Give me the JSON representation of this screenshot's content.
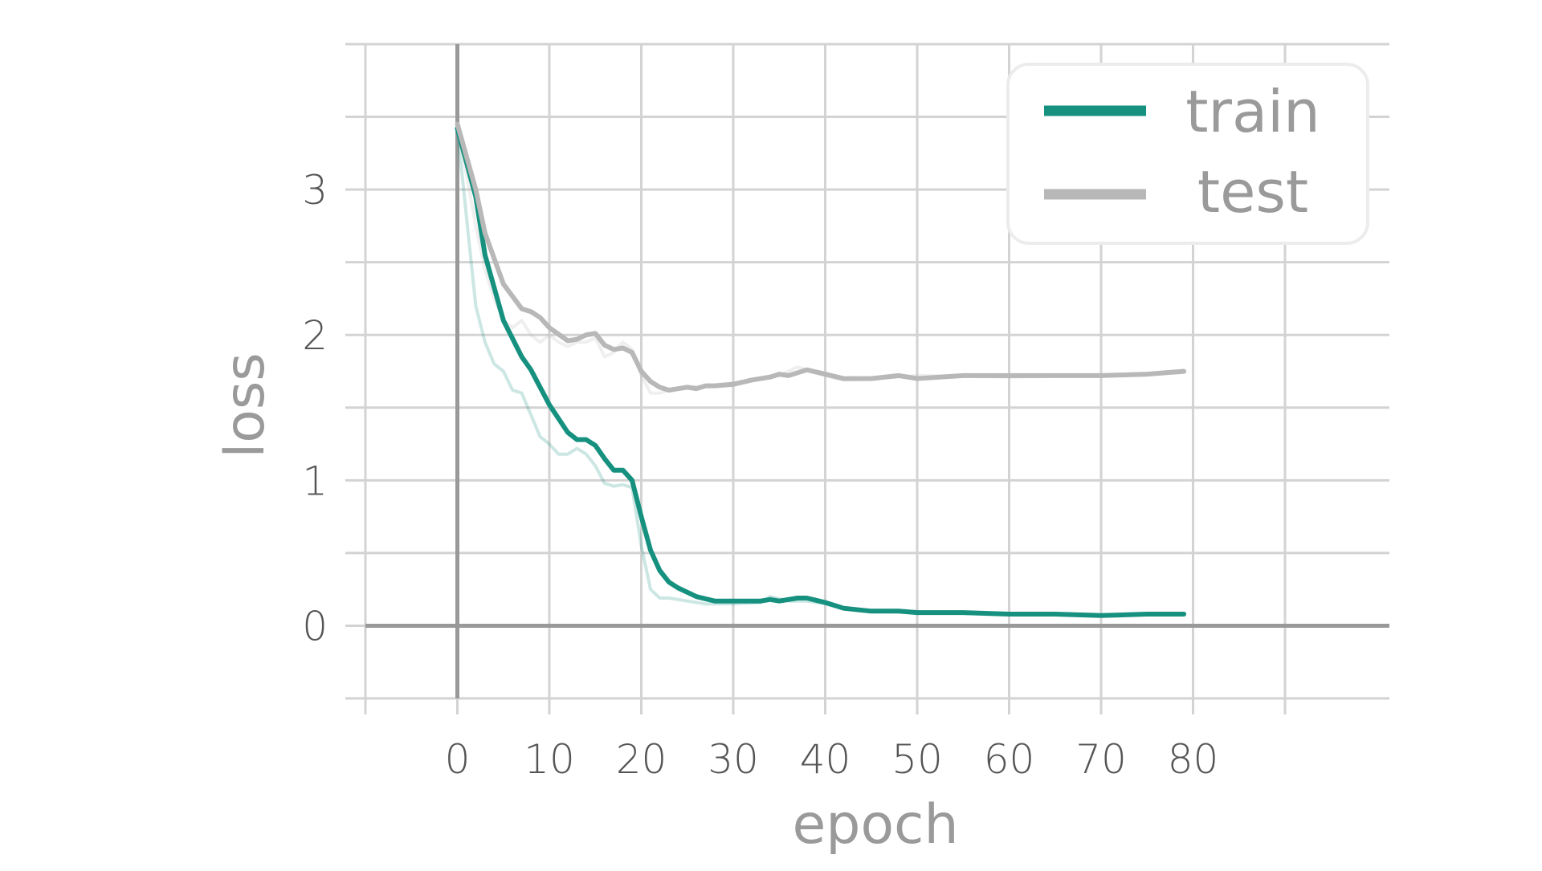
{
  "colors": {
    "train": "#16917f",
    "test": "#b8b8b8",
    "grid": "#d3d3d3",
    "zero_axis": "#999999",
    "legend_border": "#ececec"
  },
  "chart_data": {
    "type": "line",
    "xlabel": "epoch",
    "ylabel": "loss",
    "xlim": [
      -10,
      90
    ],
    "ylim": [
      -0.5,
      4.0
    ],
    "xticks": [
      0,
      10,
      20,
      30,
      40,
      50,
      60,
      70,
      80
    ],
    "yticks": [
      0,
      1,
      2,
      3
    ],
    "grid": true,
    "grid_x": [
      -10,
      0,
      10,
      20,
      30,
      40,
      50,
      60,
      70,
      80,
      90
    ],
    "grid_y": [
      -0.5,
      0,
      0.5,
      1,
      1.5,
      2,
      2.5,
      3,
      3.5,
      4
    ],
    "legend_position": "top-right",
    "series": [
      {
        "name": "train",
        "smoothed": true,
        "x": [
          0,
          2,
          3,
          5,
          7,
          8,
          10,
          12,
          13,
          14,
          15,
          16,
          17,
          18,
          19,
          20,
          21,
          22,
          23,
          24,
          26,
          28,
          30,
          33,
          34,
          35,
          37,
          38,
          40,
          42,
          45,
          48,
          50,
          55,
          60,
          65,
          70,
          75,
          79
        ],
        "values": [
          3.42,
          2.95,
          2.55,
          2.1,
          1.85,
          1.76,
          1.52,
          1.33,
          1.28,
          1.28,
          1.24,
          1.15,
          1.07,
          1.07,
          1.0,
          0.75,
          0.52,
          0.38,
          0.3,
          0.26,
          0.2,
          0.17,
          0.17,
          0.17,
          0.18,
          0.17,
          0.19,
          0.19,
          0.16,
          0.12,
          0.1,
          0.1,
          0.09,
          0.09,
          0.08,
          0.08,
          0.07,
          0.08,
          0.08
        ],
        "raw_x": [
          0,
          1,
          2,
          3,
          4,
          5,
          6,
          7,
          8,
          9,
          10,
          11,
          12,
          13,
          14,
          15,
          16,
          17,
          18,
          19,
          20,
          21,
          22,
          23,
          25,
          27,
          30,
          33,
          34,
          36,
          38,
          40,
          42,
          45,
          50,
          60,
          70,
          79
        ],
        "raw_values": [
          3.42,
          2.8,
          2.2,
          1.95,
          1.8,
          1.75,
          1.62,
          1.6,
          1.45,
          1.3,
          1.25,
          1.18,
          1.18,
          1.22,
          1.18,
          1.1,
          0.98,
          0.96,
          0.97,
          0.95,
          0.55,
          0.25,
          0.19,
          0.19,
          0.17,
          0.15,
          0.15,
          0.16,
          0.2,
          0.17,
          0.17,
          0.15,
          0.12,
          0.1,
          0.09,
          0.08,
          0.07,
          0.08
        ]
      },
      {
        "name": "test",
        "smoothed": true,
        "x": [
          0,
          2,
          3,
          5,
          7,
          8,
          9,
          10,
          12,
          13,
          14,
          15,
          16,
          17,
          18,
          19,
          20,
          21,
          22,
          23,
          24,
          25,
          26,
          27,
          28,
          30,
          32,
          34,
          35,
          36,
          37,
          38,
          40,
          42,
          45,
          48,
          50,
          55,
          60,
          65,
          70,
          75,
          79
        ],
        "values": [
          3.45,
          3.0,
          2.7,
          2.35,
          2.18,
          2.16,
          2.12,
          2.05,
          1.96,
          1.97,
          2.0,
          2.01,
          1.93,
          1.9,
          1.91,
          1.88,
          1.75,
          1.68,
          1.64,
          1.62,
          1.63,
          1.64,
          1.63,
          1.65,
          1.65,
          1.66,
          1.69,
          1.71,
          1.73,
          1.72,
          1.74,
          1.76,
          1.73,
          1.7,
          1.7,
          1.72,
          1.7,
          1.72,
          1.72,
          1.72,
          1.72,
          1.73,
          1.75
        ],
        "raw_x": [
          0,
          1,
          2,
          3,
          4,
          5,
          6,
          7,
          8,
          9,
          10,
          11,
          12,
          13,
          14,
          15,
          16,
          17,
          18,
          19,
          20,
          21,
          22,
          23,
          25,
          27,
          30,
          33,
          35,
          37,
          38,
          40,
          42,
          45,
          50,
          60,
          70,
          79
        ],
        "raw_values": [
          3.45,
          3.1,
          2.75,
          2.45,
          2.25,
          2.1,
          2.05,
          2.1,
          2.0,
          1.95,
          2.0,
          1.95,
          1.92,
          1.95,
          1.95,
          1.98,
          1.85,
          1.88,
          1.95,
          1.9,
          1.72,
          1.6,
          1.6,
          1.62,
          1.64,
          1.65,
          1.67,
          1.7,
          1.72,
          1.78,
          1.76,
          1.72,
          1.69,
          1.7,
          1.72,
          1.71,
          1.72,
          1.74
        ]
      }
    ]
  }
}
